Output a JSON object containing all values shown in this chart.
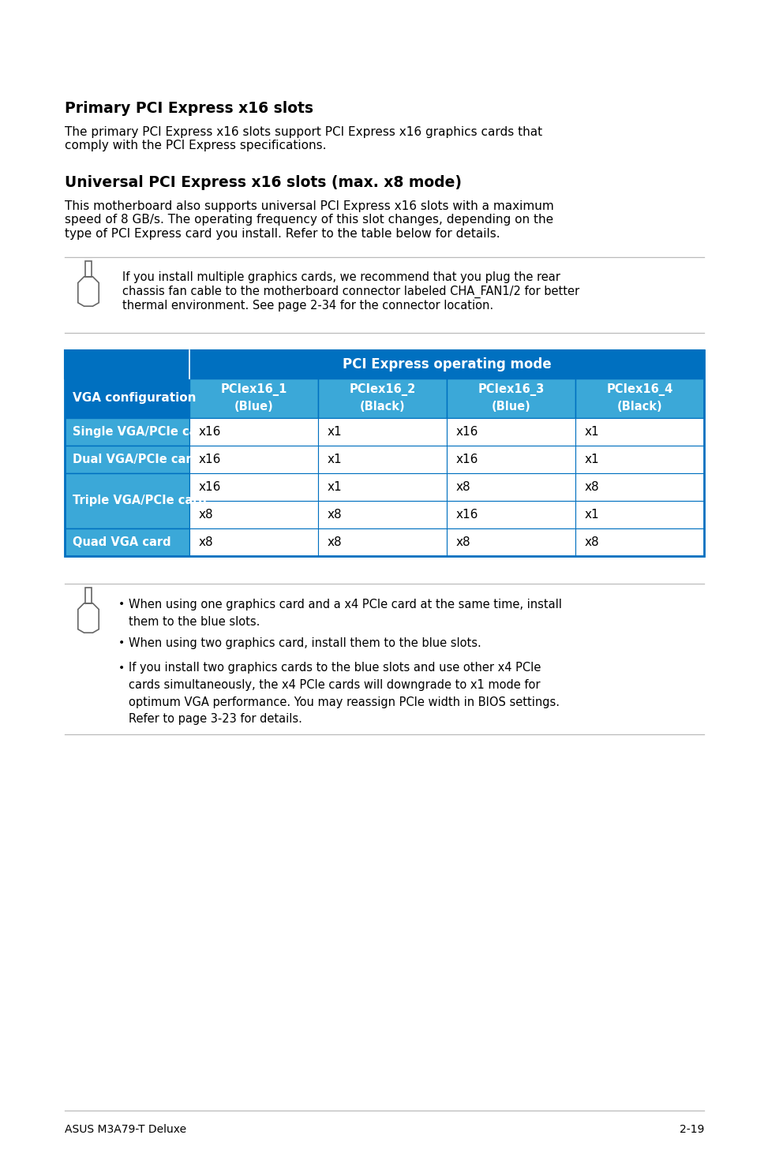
{
  "title1": "Primary PCI Express x16 slots",
  "para1": "The primary PCI Express x16 slots support PCI Express x16 graphics cards that\ncomply with the PCI Express specifications.",
  "title2": "Universal PCI Express x16 slots (max. x8 mode)",
  "para2": "This motherboard also supports universal PCI Express x16 slots with a maximum\nspeed of 8 GB/s. The operating frequency of this slot changes, depending on the\ntype of PCI Express card you install. Refer to the table below for details.",
  "note1": "If you install multiple graphics cards, we recommend that you plug the rear\nchassis fan cable to the motherboard connector labeled CHA_FAN1/2 for better\nthermal environment. See page 2-34 for the connector location.",
  "table_header_main": "PCI Express operating mode",
  "table_col0_header": "VGA configuration",
  "table_col_headers": [
    "PCIex16_1\n(Blue)",
    "PCIex16_2\n(Black)",
    "PCIex16_3\n(Blue)",
    "PCIex16_4\n(Black)"
  ],
  "table_rows": [
    [
      "Single VGA/PCIe card",
      "x16",
      "x1",
      "x16",
      "x1"
    ],
    [
      "Dual VGA/PCIe card",
      "x16",
      "x1",
      "x16",
      "x1"
    ],
    [
      "Triple VGA/PCIe card",
      "x16",
      "x1",
      "x8",
      "x8"
    ],
    [
      "Triple VGA/PCIe card_2",
      "x8",
      "x8",
      "x16",
      "x1"
    ],
    [
      "Quad VGA card",
      "x8",
      "x8",
      "x8",
      "x8"
    ]
  ],
  "notes2": [
    "When using one graphics card and a x4 PCIe card at the same time, install\nthem to the blue slots.",
    "When using two graphics card, install them to the blue slots.",
    "If you install two graphics cards to the blue slots and use other x4 PCIe\ncards simultaneously, the x4 PCIe cards will downgrade to x1 mode for\noptimum VGA performance. You may reassign PCIe width in BIOS settings.\nRefer to page 3-23 for details."
  ],
  "footer_left": "ASUS M3A79-T Deluxe",
  "footer_right": "2-19",
  "bg_color": "#ffffff",
  "header_blue_dark": "#0070c0",
  "header_blue_light": "#3ba8d8",
  "text_color": "#000000",
  "header_text_color": "#ffffff",
  "table_border_color": "#0070c0",
  "separator_color": "#bbbbbb",
  "row_white": "#ffffff",
  "row_light": "#f5f5f5"
}
